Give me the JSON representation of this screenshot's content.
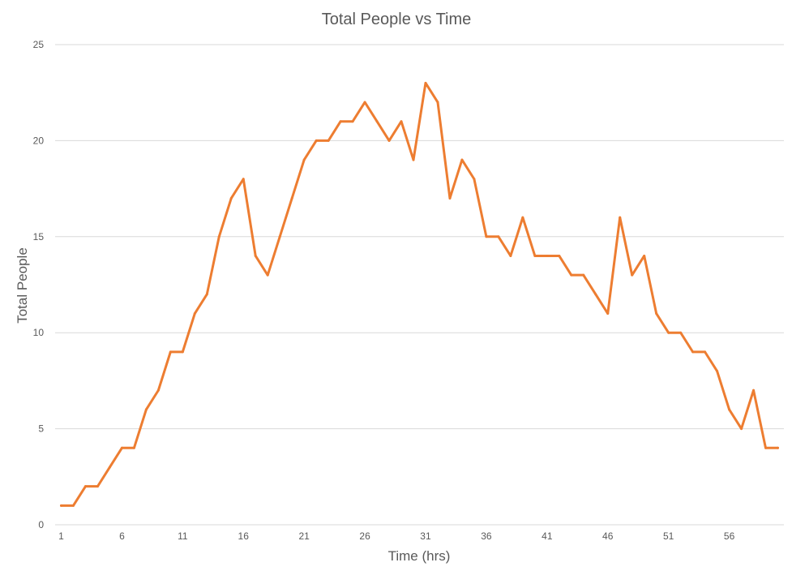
{
  "chart_data": {
    "type": "line",
    "title": "Total People vs Time",
    "xlabel": "Time (hrs)",
    "ylabel": "Total People",
    "x": [
      1,
      2,
      3,
      4,
      5,
      6,
      7,
      8,
      9,
      10,
      11,
      12,
      13,
      14,
      15,
      16,
      17,
      18,
      19,
      20,
      21,
      22,
      23,
      24,
      25,
      26,
      27,
      28,
      29,
      30,
      31,
      32,
      33,
      34,
      35,
      36,
      37,
      38,
      39,
      40,
      41,
      42,
      43,
      44,
      45,
      46,
      47,
      48,
      49,
      50,
      51,
      52,
      53,
      54,
      55,
      56,
      57,
      58,
      59,
      60
    ],
    "x_tick_labels": [
      "1",
      "6",
      "11",
      "16",
      "21",
      "26",
      "31",
      "36",
      "41",
      "46",
      "51",
      "56"
    ],
    "ylim": [
      0,
      25
    ],
    "y_ticks": [
      0,
      5,
      10,
      15,
      20,
      25
    ],
    "grid": true,
    "series": [
      {
        "color": "#ed7d31",
        "values": [
          1,
          1,
          2,
          2,
          3,
          4,
          4,
          6,
          7,
          9,
          9,
          11,
          12,
          15,
          17,
          18,
          14,
          13,
          15,
          17,
          19,
          20,
          20,
          21,
          21,
          22,
          21,
          20,
          21,
          19,
          23,
          22,
          17,
          19,
          18,
          15,
          15,
          14,
          16,
          14,
          14,
          14,
          13,
          13,
          12,
          11,
          16,
          13,
          14,
          11,
          10,
          10,
          9,
          9,
          8,
          6,
          5,
          7,
          4,
          4
        ]
      }
    ]
  }
}
